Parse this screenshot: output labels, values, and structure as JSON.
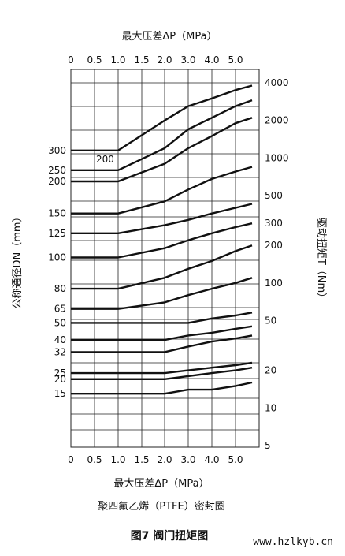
{
  "chart_data": {
    "type": "line",
    "top_axis_title": "最大压差ΔP（MPa）",
    "bottom_axis_title": "最大压差ΔP（MPa）",
    "left_axis_title": "公称通径DN（mm）",
    "right_axis_title": "驱动扭矩T（Nm）",
    "x_ticks": [
      "0",
      "0.5",
      "1.0",
      "1.5",
      "2.0",
      "3.0",
      "4.0",
      "5.0"
    ],
    "left_ticks": [
      "300",
      "250",
      "200",
      "150",
      "125",
      "100",
      "80",
      "65",
      "50",
      "40",
      "32",
      "25",
      "20",
      "15"
    ],
    "right_ticks": [
      "4000",
      "2000",
      "1000",
      "500",
      "300",
      "200",
      "100",
      "50",
      "20",
      "10",
      "5"
    ],
    "extra_label": "200",
    "grid": true,
    "series": [
      {
        "name": "300",
        "x": [
          0,
          1.0,
          2.0,
          3.0,
          4.0,
          5.0,
          5.7
        ],
        "y": [
          1150,
          1150,
          2000,
          2600,
          3000,
          3500,
          3800
        ]
      },
      {
        "name": "250",
        "x": [
          0,
          1.0,
          2.0,
          3.0,
          4.0,
          5.0,
          5.7
        ],
        "y": [
          800,
          800,
          1200,
          1700,
          2100,
          2600,
          2900
        ]
      },
      {
        "name": "200",
        "x": [
          0,
          1.0,
          2.0,
          3.0,
          4.0,
          5.0,
          5.7
        ],
        "y": [
          650,
          650,
          900,
          1200,
          1500,
          1900,
          2100
        ]
      },
      {
        "name": "150",
        "x": [
          0,
          1.0,
          2.0,
          3.0,
          4.0,
          5.0,
          5.7
        ],
        "y": [
          360,
          360,
          450,
          560,
          680,
          780,
          850
        ]
      },
      {
        "name": "125",
        "x": [
          0,
          1.0,
          2.0,
          3.0,
          4.0,
          5.0,
          5.7
        ],
        "y": [
          250,
          250,
          290,
          320,
          360,
          400,
          430
        ]
      },
      {
        "name": "100",
        "x": [
          0,
          1.0,
          2.0,
          3.0,
          4.0,
          5.0,
          5.7
        ],
        "y": [
          160,
          160,
          190,
          220,
          250,
          280,
          300
        ]
      },
      {
        "name": "80",
        "x": [
          0,
          1.0,
          2.0,
          3.0,
          4.0,
          5.0,
          5.7
        ],
        "y": [
          90,
          90,
          110,
          130,
          150,
          180,
          200
        ]
      },
      {
        "name": "65",
        "x": [
          0,
          1.0,
          2.0,
          3.0,
          4.0,
          5.0,
          5.7
        ],
        "y": [
          62,
          62,
          70,
          80,
          90,
          100,
          110
        ]
      },
      {
        "name": "50",
        "x": [
          0,
          1.0,
          2.0,
          3.0,
          4.0,
          5.0,
          5.7
        ],
        "y": [
          48,
          48,
          48,
          48,
          52,
          55,
          58
        ]
      },
      {
        "name": "40",
        "x": [
          0,
          1.0,
          2.0,
          3.0,
          4.0,
          5.0,
          5.7
        ],
        "y": [
          35,
          35,
          35,
          38,
          40,
          43,
          45
        ]
      },
      {
        "name": "32",
        "x": [
          0,
          1.0,
          2.0,
          3.0,
          4.0,
          5.0,
          5.7
        ],
        "y": [
          28,
          28,
          28,
          31,
          34,
          36,
          38
        ]
      },
      {
        "name": "25",
        "x": [
          0,
          1.0,
          2.0,
          3.0,
          4.0,
          5.0,
          5.7
        ],
        "y": [
          19,
          19,
          19,
          20,
          21,
          22,
          23
        ]
      },
      {
        "name": "20",
        "x": [
          0,
          1.0,
          2.0,
          3.0,
          4.0,
          5.0,
          5.7
        ],
        "y": [
          17,
          17,
          17,
          18,
          19,
          20,
          21
        ]
      },
      {
        "name": "15",
        "x": [
          0,
          1.0,
          2.0,
          3.0,
          4.0,
          5.0,
          5.7
        ],
        "y": [
          13,
          13,
          13,
          14,
          14,
          15,
          16
        ]
      }
    ]
  },
  "caption": "聚四氟乙烯（PTFE）密封圈",
  "figure_title": "图7 阀门扭矩图",
  "watermark": "www.hzlkyb.cn",
  "colors": {
    "line": "#111111",
    "grid": "#222222",
    "background": "#ffffff"
  }
}
